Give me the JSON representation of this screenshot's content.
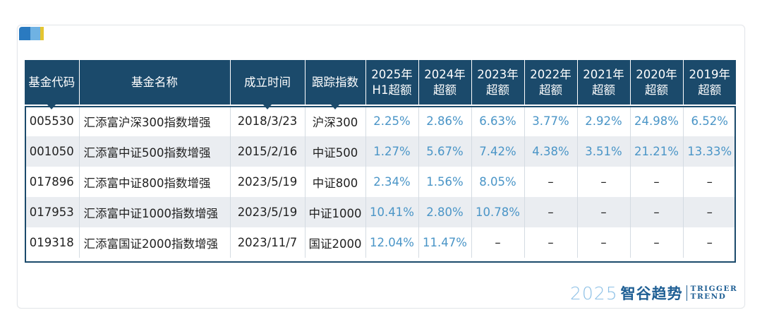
{
  "table": {
    "headers": [
      [
        "基金代码"
      ],
      [
        "基金名称"
      ],
      [
        "成立时间"
      ],
      [
        "跟踪指数"
      ],
      [
        "2025年",
        "H1超额"
      ],
      [
        "2024年",
        "超额"
      ],
      [
        "2023年",
        "超额"
      ],
      [
        "2022年",
        "超额"
      ],
      [
        "2021年",
        "超额"
      ],
      [
        "2020年",
        "超额"
      ],
      [
        "2019年",
        "超额"
      ]
    ],
    "rows": [
      [
        "005530",
        "汇添富沪深300指数增强",
        "2018/3/23",
        "沪深300",
        "2.25%",
        "2.86%",
        "6.63%",
        "3.77%",
        "2.92%",
        "24.98%",
        "6.52%"
      ],
      [
        "001050",
        "汇添富中证500指数增强",
        "2015/2/16",
        "中证500",
        "1.27%",
        "5.67%",
        "7.42%",
        "4.38%",
        "3.51%",
        "21.21%",
        "13.33%"
      ],
      [
        "017896",
        "汇添富中证800指数增强",
        "2023/5/19",
        "中证800",
        "2.34%",
        "1.56%",
        "8.05%",
        "–",
        "–",
        "–",
        "–"
      ],
      [
        "017953",
        "汇添富中证1000指数增强",
        "2023/5/19",
        "中证1000",
        "10.41%",
        "2.80%",
        "10.78%",
        "–",
        "–",
        "–",
        "–"
      ],
      [
        "019318",
        "汇添富国证2000指数增强",
        "2023/11/7",
        "国证2000",
        "12.04%",
        "11.47%",
        "–",
        "–",
        "–",
        "–",
        "–"
      ]
    ]
  },
  "brand": {
    "year": "2025",
    "name_cn": "智谷趋势",
    "name_en_line1": "TRIGGER",
    "name_en_line2": "TREND"
  },
  "colors": {
    "header_bg": "#1b4a6b",
    "percent_text": "#4a95c7",
    "alt_row_bg": "#eaedf1"
  }
}
